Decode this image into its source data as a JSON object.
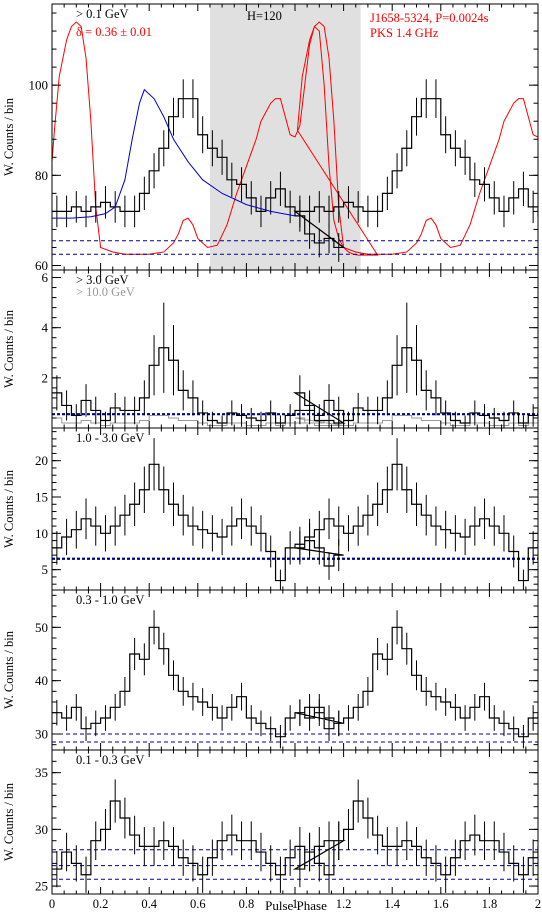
{
  "figure": {
    "xlabel": "Pulse Phase",
    "xlim": [
      0,
      2
    ],
    "xticks": [
      0,
      0.2,
      0.4,
      0.6,
      0.8,
      1,
      1.2,
      1.4,
      1.6,
      1.8,
      2
    ],
    "ylabel": "W. Counts / bin",
    "colors": {
      "histogram": "#000000",
      "radio": "#ff0000",
      "fit": "#0000cc",
      "background": "#000099",
      "shade": "#e0e0e0",
      "grey_label": "#999999"
    }
  },
  "chart_data": [
    {
      "type": "line",
      "panel": "top",
      "energy_label": "> 0.1 GeV",
      "annotations": {
        "delta": "δ = 0.36 ± 0.01",
        "htest": "H=120",
        "pulsar": "J1658-5324, P=0.0024s",
        "radio": "PKS 1.4 GHz"
      },
      "ylim": [
        59,
        118
      ],
      "yticks": [
        60,
        80,
        100
      ],
      "shaded_phase": [
        0.65,
        1.27
      ],
      "x_bin_width": 0.04,
      "x_start": 0,
      "values": [
        72,
        72,
        73,
        72,
        73,
        74,
        73,
        72,
        72,
        76,
        81,
        86,
        93,
        97,
        97,
        89,
        86,
        84,
        79,
        78,
        75,
        72,
        75,
        77,
        73,
        71,
        67,
        65,
        66,
        64
      ],
      "errors": [
        3.5,
        3.5,
        3.5,
        3.5,
        3.5,
        3.6,
        3.5,
        3.5,
        3.5,
        3.7,
        3.9,
        4.0,
        4.2,
        4.3,
        4.3,
        4.1,
        4.0,
        3.9,
        3.8,
        3.8,
        3.7,
        3.5,
        3.7,
        3.8,
        3.6,
        3.5,
        3.3,
        3.2,
        3.3,
        3.2
      ],
      "background_lines": [
        65.5,
        62.5
      ],
      "fit_curve": {
        "x": [
          0,
          0.08,
          0.16,
          0.22,
          0.26,
          0.3,
          0.33,
          0.36,
          0.38,
          0.42,
          0.46,
          0.5,
          0.56,
          0.62,
          0.7,
          0.8,
          0.9,
          1.0
        ],
        "y": [
          70.5,
          70.5,
          70.8,
          71.5,
          73,
          79,
          88,
          96,
          99,
          97,
          93,
          88,
          83,
          79,
          76,
          73.5,
          72,
          71
        ]
      },
      "radio_profile": {
        "x": [
          0,
          0.01,
          0.03,
          0.06,
          0.08,
          0.1,
          0.12,
          0.14,
          0.16,
          0.18,
          0.2,
          0.25,
          0.3,
          0.4,
          0.46,
          0.5,
          0.52,
          0.54,
          0.56,
          0.58,
          0.6,
          0.64,
          0.68,
          0.72,
          0.76,
          0.8,
          0.84,
          0.86,
          0.9,
          0.92,
          0.94,
          0.96,
          0.98,
          1.0,
          1.02,
          1.04,
          1.06,
          1.08,
          1.1,
          1.12,
          1.14,
          1.16,
          1.18,
          1.2,
          1.22,
          1.24,
          1.26,
          1.28,
          1.3,
          1.34
        ],
        "y": [
          83,
          90,
          102,
          110,
          113,
          114,
          113,
          106,
          92,
          73,
          64,
          63,
          62.5,
          62.5,
          63,
          65,
          67,
          70,
          70.5,
          69,
          66,
          64,
          64.5,
          69,
          76,
          82,
          88,
          92,
          96,
          97,
          97,
          93,
          89,
          88.5,
          91,
          100,
          109,
          113,
          112,
          100,
          82,
          70,
          66,
          64,
          63,
          62.5,
          62.3,
          62.3,
          62.3,
          62.3
        ]
      }
    },
    {
      "type": "line",
      "panel": "3-10",
      "energy_label": "> 3.0 GeV",
      "energy_label_grey": "> 10.0 GeV",
      "ylim": [
        0,
        6.3
      ],
      "yticks": [
        2,
        4,
        6
      ],
      "x_bin_width": 0.04,
      "x_start": 0,
      "values": [
        1.4,
        0.9,
        0.5,
        1.1,
        0.7,
        0.3,
        0.8,
        0.7,
        0.7,
        1.2,
        2.5,
        3.2,
        2.7,
        1.5,
        1.2,
        0.6,
        0.3,
        0.2,
        0.6,
        0.5,
        0.4,
        0.3,
        0.6,
        0.2,
        0.5,
        0.7,
        0.7,
        0.3,
        0.3,
        0.2
      ],
      "errors": [
        0.7,
        0.6,
        0.45,
        0.65,
        0.55,
        0.35,
        0.6,
        0.55,
        0.55,
        0.7,
        1.2,
        1.8,
        1.4,
        0.8,
        0.7,
        0.5,
        0.35,
        0.3,
        0.5,
        0.45,
        0.4,
        0.35,
        0.5,
        0.3,
        0.45,
        0.55,
        0.55,
        0.35,
        0.35,
        0.3
      ],
      "grey_values": [
        0.4,
        0.2,
        0.2,
        0.3,
        0.2,
        0.1,
        0.2,
        0.2,
        0.2,
        0.3,
        0.5,
        0.5,
        0.4,
        0.3,
        0.3,
        0.2,
        0.1,
        0.1,
        0.2,
        0.2,
        0.1,
        0.1,
        0.2,
        0.1,
        0.2,
        0.2,
        0.2,
        0.1,
        0.1,
        0.1
      ],
      "background_lines": [
        0.55
      ]
    },
    {
      "type": "line",
      "panel": "1-3",
      "energy_label": "1.0 - 3.0 GeV",
      "ylim": [
        2.2,
        24.5
      ],
      "yticks": [
        5,
        10,
        15,
        20
      ],
      "x_bin_width": 0.04,
      "x_start": 0,
      "values": [
        8,
        9.5,
        10.5,
        12,
        11,
        10,
        11,
        12.5,
        14,
        16,
        19.5,
        16,
        14,
        12.5,
        11,
        10.5,
        10,
        9.5,
        11,
        12,
        11,
        10,
        7.5,
        3.5,
        8,
        8.5,
        9,
        8,
        5.5,
        7
      ],
      "errors": [
        2.3,
        2.5,
        2.6,
        2.8,
        2.7,
        2.5,
        2.7,
        2.8,
        3.0,
        3.2,
        3.6,
        3.2,
        3.0,
        2.8,
        2.7,
        2.6,
        2.5,
        2.5,
        2.7,
        2.8,
        2.7,
        2.5,
        2.2,
        1.5,
        2.3,
        2.4,
        2.4,
        2.3,
        1.9,
        2.2
      ],
      "background_lines": [
        6.5
      ]
    },
    {
      "type": "line",
      "panel": "0.3-1",
      "energy_label": "0.3 - 1.0 GeV",
      "ylim": [
        27,
        57
      ],
      "yticks": [
        30,
        40,
        50
      ],
      "x_bin_width": 0.04,
      "x_start": 0,
      "values": [
        34,
        33,
        35,
        31,
        32,
        33,
        35,
        38,
        45,
        44,
        50,
        46,
        41,
        38,
        37,
        36,
        35,
        33,
        35,
        37,
        33,
        32,
        31,
        29.5,
        33,
        34,
        35,
        34,
        33,
        32
      ],
      "errors": [
        2.4,
        2.4,
        2.5,
        2.3,
        2.4,
        2.4,
        2.5,
        2.7,
        3.0,
        3.0,
        3.2,
        3.0,
        2.8,
        2.7,
        2.6,
        2.6,
        2.5,
        2.4,
        2.5,
        2.6,
        2.4,
        2.4,
        2.3,
        2.2,
        2.4,
        2.5,
        2.5,
        2.5,
        2.4,
        2.4
      ],
      "background_lines": [
        30,
        28.5
      ]
    },
    {
      "type": "line",
      "panel": "0.1-0.3",
      "energy_label": "0.1 - 0.3 GeV",
      "ylim": [
        24.3,
        37
      ],
      "yticks": [
        25,
        30,
        35
      ],
      "x_bin_width": 0.04,
      "x_start": 0,
      "values": [
        26.5,
        28,
        27,
        26,
        29,
        30,
        32.5,
        31,
        29.5,
        28.5,
        28.5,
        29,
        28.5,
        27.5,
        27,
        26,
        27.5,
        29,
        29.5,
        29,
        29,
        28,
        27,
        26,
        27.5,
        28.5,
        28,
        28.5,
        29,
        29
      ],
      "errors": [
        1.6,
        1.7,
        1.6,
        1.6,
        1.7,
        1.8,
        1.9,
        1.8,
        1.7,
        1.7,
        1.7,
        1.7,
        1.7,
        1.6,
        1.6,
        1.6,
        1.6,
        1.7,
        1.8,
        1.7,
        1.7,
        1.7,
        1.6,
        1.6,
        1.6,
        1.7,
        1.7,
        1.7,
        1.7,
        1.7
      ],
      "background_lines": [
        28.2,
        26.8,
        25.6
      ]
    }
  ]
}
